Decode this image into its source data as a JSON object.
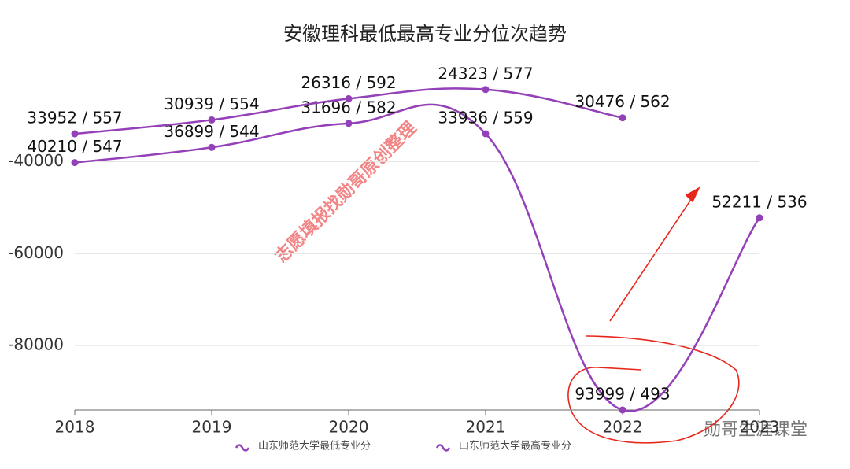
{
  "chart_data": {
    "type": "line",
    "title": "安徽理科最低最高专业分位次趋势",
    "categories": [
      "2018",
      "2019",
      "2020",
      "2021",
      "2022",
      "2023"
    ],
    "series": [
      {
        "name": "山东师范大学最低专业分",
        "color": "#9440b8",
        "values": [
          -40210,
          -36899,
          -31696,
          -33936,
          -93999,
          -52211
        ],
        "value_labels": [
          "40210 / 547",
          "36899 / 544",
          "31696 / 582",
          "33936 / 559",
          "93999 / 493",
          "52211 / 536"
        ]
      },
      {
        "name": "山东师范大学最高专业分",
        "color": "#9440b8",
        "values": [
          -33952,
          -30939,
          -26316,
          -24323,
          -30476,
          null
        ],
        "value_labels": [
          "33952 / 557",
          "30939 / 554",
          "26316 / 592",
          "24323 / 577",
          "30476 / 562",
          null
        ]
      }
    ],
    "ylim": [
      -94000,
      -20000
    ],
    "yticks": [
      -40000,
      -60000,
      -80000
    ],
    "grid": true,
    "legend": "bottom",
    "annotations": [
      "志愿填报找勋哥原创整理",
      "勋哥生涯课堂"
    ]
  }
}
